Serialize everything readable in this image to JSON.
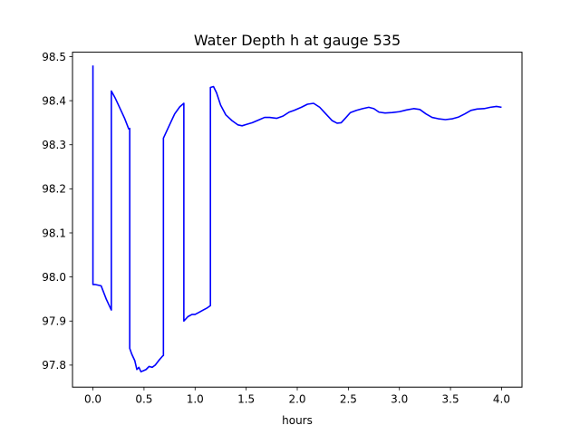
{
  "chart_data": {
    "type": "line",
    "title": "Water Depth h at gauge 535",
    "xlabel": "hours",
    "ylabel": "",
    "xlim": [
      -0.2,
      4.2
    ],
    "ylim": [
      97.75,
      98.51
    ],
    "grid": false,
    "x_ticks": [
      "0.0",
      "0.5",
      "1.0",
      "1.5",
      "2.0",
      "2.5",
      "3.0",
      "3.5",
      "4.0"
    ],
    "x_tick_values": [
      0.0,
      0.5,
      1.0,
      1.5,
      2.0,
      2.5,
      3.0,
      3.5,
      4.0
    ],
    "y_ticks": [
      "97.8",
      "97.9",
      "98.0",
      "98.1",
      "98.2",
      "98.3",
      "98.4",
      "98.5"
    ],
    "y_tick_values": [
      97.8,
      97.9,
      98.0,
      98.1,
      98.2,
      98.3,
      98.4,
      98.5
    ],
    "series": [
      {
        "color": "#0000ff",
        "x": [
          0.0,
          0.0,
          0.02,
          0.08,
          0.13,
          0.17,
          0.18,
          0.18,
          0.22,
          0.27,
          0.31,
          0.35,
          0.36,
          0.36,
          0.38,
          0.41,
          0.43,
          0.45,
          0.47,
          0.5,
          0.52,
          0.55,
          0.58,
          0.61,
          0.65,
          0.68,
          0.69,
          0.69,
          0.75,
          0.8,
          0.85,
          0.89,
          0.89,
          0.89,
          0.93,
          0.97,
          1.0,
          1.04,
          1.08,
          1.12,
          1.15,
          1.15,
          1.18,
          1.21,
          1.25,
          1.3,
          1.36,
          1.42,
          1.46,
          1.5,
          1.56,
          1.62,
          1.68,
          1.73,
          1.8,
          1.86,
          1.92,
          1.97,
          2.04,
          2.1,
          2.16,
          2.22,
          2.28,
          2.34,
          2.39,
          2.43,
          2.47,
          2.52,
          2.58,
          2.64,
          2.7,
          2.75,
          2.8,
          2.86,
          2.93,
          3.0,
          3.07,
          3.14,
          3.2,
          3.26,
          3.32,
          3.38,
          3.45,
          3.52,
          3.58,
          3.64,
          3.7,
          3.76,
          3.83,
          3.89,
          3.95,
          4.0
        ],
        "y": [
          98.48,
          97.983,
          97.983,
          97.98,
          97.95,
          97.93,
          97.925,
          98.422,
          98.405,
          98.38,
          98.36,
          98.336,
          98.337,
          97.838,
          97.825,
          97.81,
          97.79,
          97.795,
          97.785,
          97.788,
          97.79,
          97.797,
          97.795,
          97.8,
          97.812,
          97.82,
          97.822,
          98.315,
          98.345,
          98.37,
          98.386,
          98.394,
          97.9,
          97.9,
          97.91,
          97.915,
          97.915,
          97.92,
          97.925,
          97.93,
          97.935,
          98.43,
          98.432,
          98.418,
          98.39,
          98.368,
          98.355,
          98.345,
          98.343,
          98.346,
          98.35,
          98.356,
          98.362,
          98.362,
          98.36,
          98.365,
          98.374,
          98.378,
          98.385,
          98.392,
          98.394,
          98.385,
          98.37,
          98.355,
          98.349,
          98.35,
          98.36,
          98.373,
          98.378,
          98.382,
          98.385,
          98.382,
          98.374,
          98.372,
          98.373,
          98.375,
          98.379,
          98.382,
          98.38,
          98.37,
          98.362,
          98.359,
          98.357,
          98.359,
          98.363,
          98.37,
          98.378,
          98.381,
          98.382,
          98.385,
          98.387,
          98.385
        ]
      }
    ]
  }
}
